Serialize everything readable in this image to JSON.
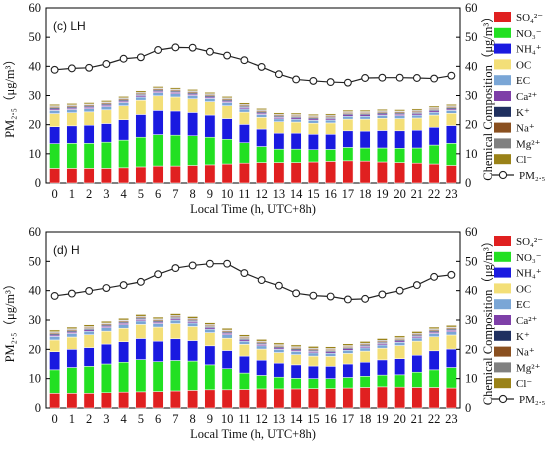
{
  "figure": {
    "panels": [
      {
        "label": "(c) LH",
        "ylabel_left": "PM₂.₅（μg/m³）",
        "ylabel_right": "Chemical Composition（μg/m³）",
        "xlabel": "Local Time (h, UTC+8h)"
      },
      {
        "label": "(d) H",
        "ylabel_left": "PM₂.₅（μg/m³）",
        "ylabel_right": "Chemical Composition（μg/m³）",
        "xlabel": "Local Time (h, UTC+8h)"
      }
    ]
  },
  "chart_data": [
    {
      "type": "bar",
      "stacked": true,
      "title": "(c) LH",
      "xlabel": "Local Time (h, UTC+8h)",
      "ylabel": "PM₂.₅（μg/m³）",
      "ylabel_right": "Chemical Composition（μg/m³）",
      "ylim": [
        0,
        60
      ],
      "yticks": [
        0,
        10,
        20,
        30,
        40,
        50,
        60
      ],
      "grid": false,
      "legend_position": "right",
      "categories": [
        "0",
        "1",
        "2",
        "3",
        "4",
        "5",
        "6",
        "7",
        "8",
        "9",
        "10",
        "11",
        "12",
        "13",
        "14",
        "15",
        "16",
        "17",
        "18",
        "19",
        "20",
        "21",
        "22",
        "23"
      ],
      "series": [
        {
          "name": "SO₄²⁻",
          "color": "#e02020",
          "values": [
            5.0,
            5.0,
            5.0,
            5.0,
            5.2,
            5.5,
            5.8,
            5.8,
            6.0,
            6.2,
            6.5,
            6.8,
            7.0,
            7.0,
            7.0,
            7.2,
            7.4,
            7.6,
            7.5,
            7.2,
            7.0,
            6.8,
            6.5,
            6.0
          ]
        },
        {
          "name": "NO₃⁻",
          "color": "#22e022",
          "values": [
            8.5,
            8.6,
            8.6,
            9.0,
            9.5,
            10.2,
            10.8,
            10.6,
            10.2,
            9.5,
            8.5,
            7.0,
            5.5,
            4.6,
            4.6,
            4.2,
            4.1,
            4.6,
            4.5,
            4.8,
            4.9,
            5.2,
            6.5,
            7.6
          ]
        },
        {
          "name": "NH₄⁺",
          "color": "#1a1ae0",
          "values": [
            5.8,
            6.0,
            6.2,
            6.4,
            7.0,
            7.8,
            8.3,
            8.3,
            8.0,
            7.6,
            7.1,
            6.3,
            6.0,
            5.5,
            5.5,
            5.3,
            5.2,
            5.7,
            5.8,
            6.0,
            6.0,
            6.1,
            6.1,
            6.1
          ]
        },
        {
          "name": "OC",
          "color": "#f3df78",
          "values": [
            4.5,
            4.5,
            4.6,
            4.7,
            4.8,
            4.9,
            5.0,
            4.8,
            4.7,
            4.6,
            4.4,
            4.2,
            4.0,
            3.9,
            3.8,
            3.8,
            3.9,
            4.0,
            4.1,
            4.2,
            4.2,
            4.2,
            4.2,
            4.2
          ]
        },
        {
          "name": "EC",
          "color": "#7aa6d6",
          "values": [
            1.1,
            1.1,
            1.1,
            1.1,
            1.1,
            1.1,
            1.1,
            1.1,
            1.1,
            1.1,
            1.1,
            1.1,
            1.0,
            1.0,
            1.0,
            1.0,
            1.0,
            1.0,
            1.0,
            1.0,
            1.0,
            1.0,
            1.0,
            1.0
          ]
        },
        {
          "name": "Ca²⁺",
          "color": "#7e3fa8",
          "values": [
            0.5,
            0.5,
            0.5,
            0.5,
            0.5,
            0.5,
            0.5,
            0.5,
            0.5,
            0.5,
            0.5,
            0.5,
            0.5,
            0.5,
            0.5,
            0.5,
            0.5,
            0.5,
            0.5,
            0.5,
            0.5,
            0.5,
            0.5,
            0.5
          ]
        },
        {
          "name": "K⁺",
          "color": "#203060",
          "values": [
            0.4,
            0.4,
            0.4,
            0.4,
            0.4,
            0.4,
            0.4,
            0.4,
            0.4,
            0.4,
            0.4,
            0.4,
            0.4,
            0.4,
            0.4,
            0.4,
            0.4,
            0.4,
            0.4,
            0.4,
            0.4,
            0.4,
            0.4,
            0.4
          ]
        },
        {
          "name": "Na⁺",
          "color": "#8a5020",
          "values": [
            0.4,
            0.4,
            0.4,
            0.4,
            0.4,
            0.4,
            0.4,
            0.4,
            0.4,
            0.4,
            0.4,
            0.4,
            0.4,
            0.4,
            0.4,
            0.4,
            0.4,
            0.4,
            0.4,
            0.4,
            0.4,
            0.4,
            0.4,
            0.4
          ]
        },
        {
          "name": "Mg²⁺",
          "color": "#808080",
          "values": [
            0.3,
            0.3,
            0.3,
            0.3,
            0.3,
            0.3,
            0.3,
            0.3,
            0.3,
            0.3,
            0.3,
            0.3,
            0.3,
            0.3,
            0.3,
            0.3,
            0.3,
            0.3,
            0.3,
            0.3,
            0.3,
            0.3,
            0.3,
            0.3
          ]
        },
        {
          "name": "Cl⁻",
          "color": "#9a8218",
          "values": [
            0.5,
            0.5,
            0.5,
            0.5,
            0.5,
            0.5,
            0.5,
            0.5,
            0.5,
            0.5,
            0.5,
            0.5,
            0.5,
            0.5,
            0.5,
            0.5,
            0.5,
            0.5,
            0.5,
            0.5,
            0.5,
            0.5,
            0.5,
            0.5
          ]
        }
      ],
      "line": {
        "name": "PM₂.₅",
        "values": [
          38.8,
          39.3,
          39.5,
          40.8,
          42.6,
          43.1,
          45.6,
          46.5,
          46.4,
          45.0,
          43.7,
          42.1,
          39.8,
          37.3,
          35.5,
          35.0,
          34.6,
          34.4,
          36.0,
          36.1,
          36.1,
          36.0,
          35.8,
          36.8
        ]
      }
    },
    {
      "type": "bar",
      "stacked": true,
      "title": "(d) H",
      "xlabel": "Local Time (h, UTC+8h)",
      "ylabel": "PM₂.₅（μg/m³）",
      "ylabel_right": "Chemical Composition（μg/m³）",
      "ylim": [
        0,
        60
      ],
      "yticks": [
        0,
        10,
        20,
        30,
        40,
        50,
        60
      ],
      "grid": false,
      "legend_position": "right",
      "categories": [
        "0",
        "1",
        "2",
        "3",
        "4",
        "5",
        "6",
        "7",
        "8",
        "9",
        "10",
        "11",
        "12",
        "13",
        "14",
        "15",
        "16",
        "17",
        "18",
        "19",
        "20",
        "21",
        "22",
        "23"
      ],
      "series": [
        {
          "name": "SO₄²⁻",
          "color": "#e02020",
          "values": [
            5.0,
            5.0,
            5.0,
            5.2,
            5.4,
            5.5,
            5.6,
            5.8,
            6.0,
            6.2,
            6.2,
            6.3,
            6.5,
            6.5,
            6.5,
            6.6,
            6.6,
            6.8,
            7.0,
            7.2,
            7.1,
            7.0,
            7.0,
            6.8
          ]
        },
        {
          "name": "NO₃⁻",
          "color": "#22e022",
          "values": [
            8.0,
            8.8,
            9.2,
            9.8,
            10.2,
            11.0,
            10.2,
            10.4,
            10.0,
            8.5,
            7.2,
            5.6,
            4.6,
            4.0,
            3.6,
            3.4,
            3.4,
            3.6,
            3.8,
            4.0,
            4.2,
            5.2,
            6.0,
            7.0
          ]
        },
        {
          "name": "NH₄⁺",
          "color": "#1a1ae0",
          "values": [
            6.2,
            6.2,
            6.4,
            6.8,
            7.0,
            7.2,
            7.0,
            7.4,
            7.0,
            6.5,
            6.2,
            5.8,
            5.2,
            4.8,
            4.6,
            4.3,
            4.2,
            4.6,
            4.8,
            5.2,
            5.5,
            5.8,
            6.5,
            6.3
          ]
        },
        {
          "name": "OC",
          "color": "#f3df78",
          "values": [
            4.0,
            4.2,
            4.4,
            4.4,
            4.6,
            4.8,
            4.8,
            5.2,
            4.8,
            4.5,
            4.2,
            4.0,
            3.8,
            3.6,
            3.5,
            3.4,
            3.4,
            3.6,
            3.8,
            4.0,
            4.5,
            4.8,
            4.8,
            4.8
          ]
        },
        {
          "name": "EC",
          "color": "#7aa6d6",
          "values": [
            1.2,
            1.2,
            1.2,
            1.2,
            1.2,
            1.2,
            1.2,
            1.2,
            1.2,
            1.2,
            1.2,
            1.1,
            1.1,
            1.1,
            1.1,
            1.1,
            1.1,
            1.1,
            1.1,
            1.1,
            1.1,
            1.1,
            1.1,
            1.1
          ]
        },
        {
          "name": "Ca²⁺",
          "color": "#7e3fa8",
          "values": [
            0.5,
            0.5,
            0.5,
            0.5,
            0.5,
            0.5,
            0.5,
            0.5,
            0.5,
            0.5,
            0.5,
            0.5,
            0.5,
            0.5,
            0.5,
            0.5,
            0.5,
            0.5,
            0.5,
            0.5,
            0.5,
            0.5,
            0.5,
            0.5
          ]
        },
        {
          "name": "K⁺",
          "color": "#203060",
          "values": [
            0.4,
            0.4,
            0.4,
            0.4,
            0.4,
            0.4,
            0.4,
            0.4,
            0.4,
            0.4,
            0.4,
            0.4,
            0.4,
            0.4,
            0.4,
            0.4,
            0.4,
            0.4,
            0.4,
            0.4,
            0.4,
            0.4,
            0.4,
            0.4
          ]
        },
        {
          "name": "Na⁺",
          "color": "#8a5020",
          "values": [
            0.4,
            0.4,
            0.4,
            0.4,
            0.4,
            0.4,
            0.4,
            0.4,
            0.4,
            0.4,
            0.4,
            0.4,
            0.4,
            0.4,
            0.4,
            0.4,
            0.4,
            0.4,
            0.4,
            0.4,
            0.4,
            0.4,
            0.4,
            0.4
          ]
        },
        {
          "name": "Mg²⁺",
          "color": "#808080",
          "values": [
            0.3,
            0.3,
            0.3,
            0.3,
            0.3,
            0.3,
            0.3,
            0.3,
            0.3,
            0.3,
            0.3,
            0.3,
            0.3,
            0.3,
            0.3,
            0.3,
            0.3,
            0.3,
            0.3,
            0.3,
            0.3,
            0.3,
            0.3,
            0.3
          ]
        },
        {
          "name": "Cl⁻",
          "color": "#9a8218",
          "values": [
            0.6,
            0.6,
            0.6,
            0.6,
            0.6,
            0.6,
            0.6,
            0.6,
            0.6,
            0.6,
            0.6,
            0.6,
            0.6,
            0.6,
            0.6,
            0.6,
            0.6,
            0.6,
            0.6,
            0.6,
            0.6,
            0.6,
            0.6,
            0.6
          ]
        }
      ],
      "line": {
        "name": "PM₂.₅",
        "values": [
          38.2,
          39.0,
          39.9,
          40.9,
          41.9,
          43.0,
          45.6,
          47.7,
          48.6,
          49.2,
          49.2,
          46.0,
          43.6,
          41.7,
          39.1,
          38.3,
          38.0,
          37.0,
          37.2,
          38.7,
          40.0,
          41.9,
          44.7,
          45.4
        ]
      }
    }
  ]
}
